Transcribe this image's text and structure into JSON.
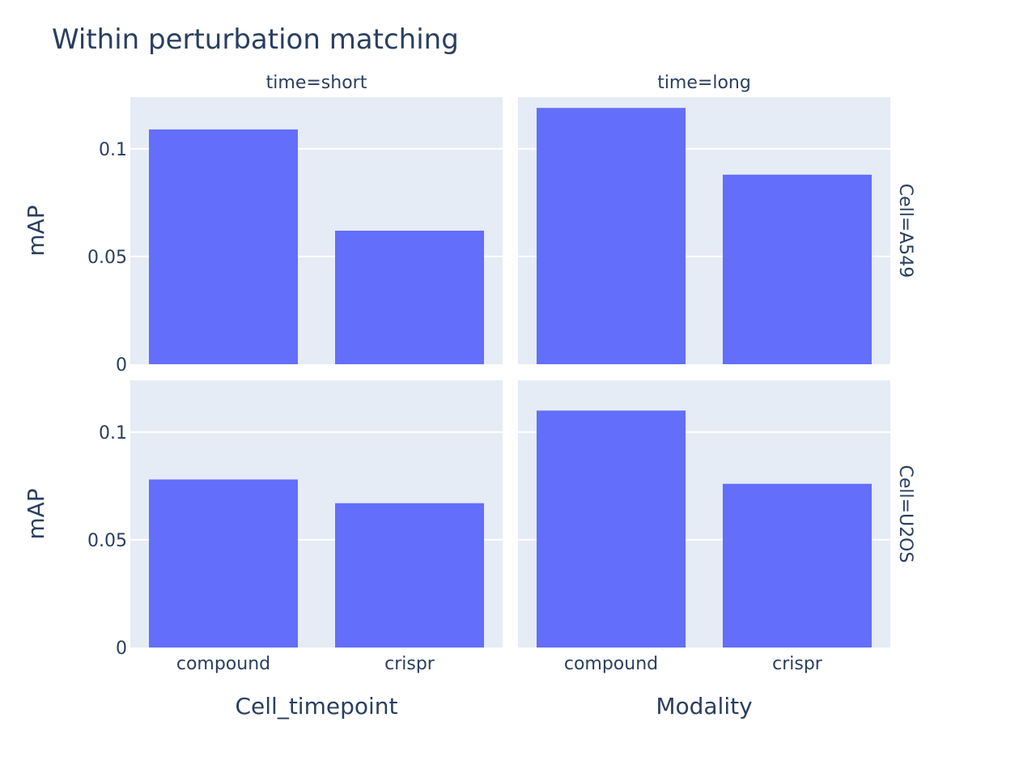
{
  "colors": {
    "bar": "#636efa",
    "plot_bg": "#e5ecf6",
    "grid": "#ffffff",
    "text": "#2a3f5f",
    "page_bg": "#ffffff"
  },
  "chart_data": {
    "type": "bar",
    "title": "Within perturbation matching",
    "ylabel": "mAP",
    "ylim": [
      0,
      0.124
    ],
    "yticks": [
      {
        "value": 0,
        "label": "0"
      },
      {
        "value": 0.05,
        "label": "0.05"
      },
      {
        "value": 0.1,
        "label": "0.1"
      }
    ],
    "categories": [
      "compound",
      "crispr"
    ],
    "column_facets": [
      "time=short",
      "time=long"
    ],
    "row_facets": [
      "Cell=A549",
      "Cell=U2OS"
    ],
    "x_axis_titles": [
      "Cell_timepoint",
      "Modality"
    ],
    "grid": true,
    "panels": [
      {
        "row": "Cell=A549",
        "column": "time=short",
        "values": [
          0.109,
          0.062
        ]
      },
      {
        "row": "Cell=A549",
        "column": "time=long",
        "values": [
          0.119,
          0.088
        ]
      },
      {
        "row": "Cell=U2OS",
        "column": "time=short",
        "values": [
          0.078,
          0.067
        ]
      },
      {
        "row": "Cell=U2OS",
        "column": "time=long",
        "values": [
          0.11,
          0.076
        ]
      }
    ]
  }
}
